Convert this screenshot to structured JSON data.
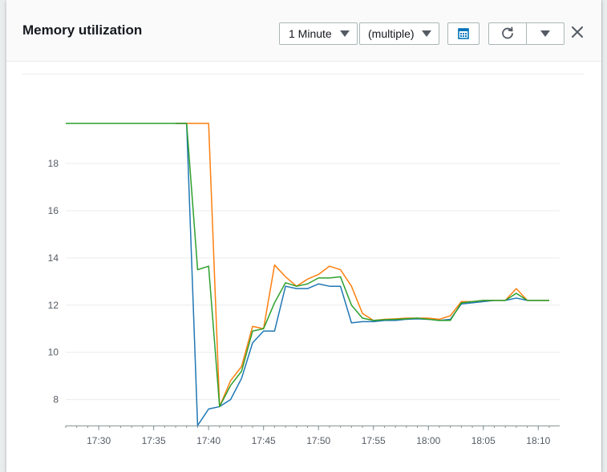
{
  "modal": {
    "title": "Memory utilization",
    "period_select": {
      "value": "1 Minute"
    },
    "statistic_select": {
      "value": "(multiple)"
    },
    "icons": {
      "calendar": "calendar-icon",
      "refresh": "refresh-icon",
      "refresh_menu": "caret-down-icon",
      "close": "close-icon"
    }
  },
  "colors": {
    "blue": "#1f77b4",
    "orange": "#ff7f0e",
    "green": "#2ca02c",
    "grid": "#e9ebed",
    "axis": "#879596"
  },
  "chart_data": {
    "type": "line",
    "title": "",
    "xlabel": "",
    "ylabel": "",
    "x": [
      "17:27",
      "17:28",
      "17:29",
      "17:30",
      "17:31",
      "17:32",
      "17:33",
      "17:34",
      "17:35",
      "17:36",
      "17:37",
      "17:38",
      "17:39",
      "17:40",
      "17:41",
      "17:42",
      "17:43",
      "17:44",
      "17:45",
      "17:46",
      "17:47",
      "17:48",
      "17:49",
      "17:50",
      "17:51",
      "17:52",
      "17:53",
      "17:54",
      "17:55",
      "17:56",
      "17:57",
      "17:58",
      "17:59",
      "18:00",
      "18:01",
      "18:02",
      "18:03",
      "18:04",
      "18:05",
      "18:06",
      "18:07",
      "18:08",
      "18:09",
      "18:10",
      "18:11"
    ],
    "x_tick_labels": [
      "17:30",
      "17:35",
      "17:40",
      "17:45",
      "17:50",
      "17:55",
      "18:00",
      "18:05",
      "18:10"
    ],
    "y_tick_labels": [
      8,
      10,
      12,
      14,
      16,
      18
    ],
    "ylim": [
      6.9,
      19.8
    ],
    "grid": true,
    "legend": "none",
    "series": [
      {
        "color": "#1f77b4",
        "values": [
          null,
          null,
          null,
          null,
          null,
          null,
          null,
          null,
          null,
          null,
          19.7,
          19.7,
          6.9,
          7.6,
          7.7,
          8.0,
          8.9,
          10.4,
          10.9,
          10.9,
          12.8,
          12.7,
          12.7,
          12.9,
          12.8,
          12.8,
          11.25,
          11.3,
          11.3,
          11.35,
          11.35,
          11.4,
          11.42,
          11.4,
          11.35,
          11.4,
          12.05,
          12.1,
          12.15,
          12.2,
          12.2,
          12.3,
          12.2,
          12.2,
          12.2
        ]
      },
      {
        "color": "#ff7f0e",
        "values": [
          null,
          null,
          null,
          null,
          null,
          null,
          null,
          null,
          null,
          null,
          19.7,
          19.7,
          19.7,
          19.7,
          7.7,
          8.8,
          9.4,
          11.1,
          11.0,
          13.7,
          13.2,
          12.8,
          13.1,
          13.3,
          13.65,
          13.5,
          12.8,
          11.65,
          11.35,
          11.4,
          11.42,
          11.45,
          11.45,
          11.45,
          11.4,
          11.55,
          12.15,
          12.15,
          12.2,
          12.2,
          12.2,
          12.7,
          12.2,
          12.2,
          12.2
        ]
      },
      {
        "color": "#2ca02c",
        "values": [
          19.7,
          19.7,
          19.7,
          19.7,
          19.7,
          19.7,
          19.7,
          19.7,
          19.7,
          19.7,
          19.7,
          19.7,
          13.5,
          13.65,
          7.7,
          8.6,
          9.2,
          10.9,
          11.0,
          12.1,
          12.95,
          12.8,
          12.9,
          13.15,
          13.15,
          13.2,
          12.0,
          11.45,
          11.35,
          11.38,
          11.4,
          11.42,
          11.45,
          11.4,
          11.35,
          11.35,
          12.1,
          12.15,
          12.2,
          12.2,
          12.2,
          12.5,
          12.2,
          12.2,
          12.2
        ]
      }
    ]
  }
}
